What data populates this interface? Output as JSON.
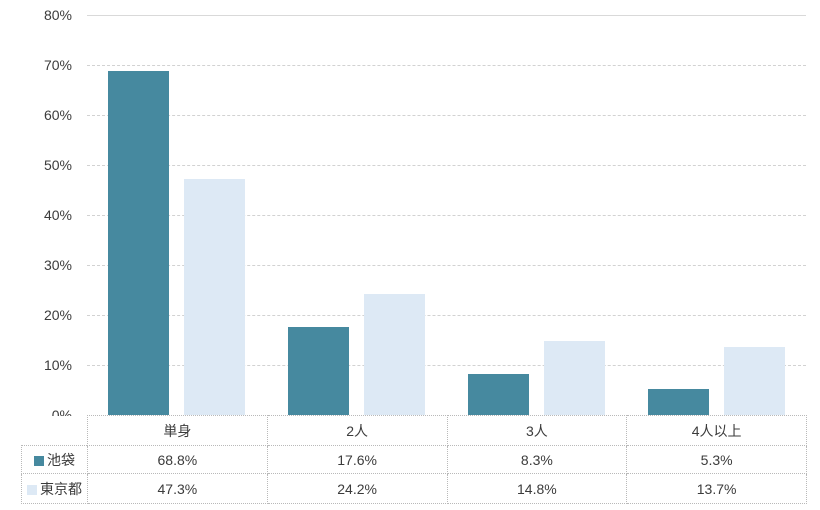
{
  "chart_data": {
    "type": "bar",
    "title": "",
    "xlabel": "",
    "ylabel": "",
    "categories": [
      "単身",
      "2人",
      "3人",
      "4人以上"
    ],
    "series": [
      {
        "name": "池袋",
        "color": "#46899f",
        "values": [
          68.8,
          17.6,
          8.3,
          5.3
        ]
      },
      {
        "name": "東京都",
        "color": "#dde9f5",
        "values": [
          47.3,
          24.2,
          14.8,
          13.7
        ]
      }
    ],
    "ylim": [
      0,
      80
    ],
    "ytick_step": 10,
    "yticks": [
      "80%",
      "70%",
      "60%",
      "50%",
      "40%",
      "30%",
      "20%",
      "10%",
      "0%"
    ],
    "grid": "horizontal-dashed",
    "legend_position": "data-table-left"
  },
  "table": {
    "header": [
      "単身",
      "2人",
      "3人",
      "4人以上"
    ],
    "rows": [
      {
        "legend": "池袋",
        "swatch_color": "#46899f",
        "cells": [
          "68.8%",
          "17.6%",
          "8.3%",
          "5.3%"
        ]
      },
      {
        "legend": "東京都",
        "swatch_color": "#dde9f5",
        "cells": [
          "47.3%",
          "24.2%",
          "14.8%",
          "13.7%"
        ]
      }
    ]
  },
  "colors": {
    "series_1": "#46899f",
    "series_2": "#dde9f5",
    "gridline": "#d2d2d2",
    "table_border": "#b9b9b9",
    "text": "#3b3b3b",
    "background": "#ffffff"
  }
}
